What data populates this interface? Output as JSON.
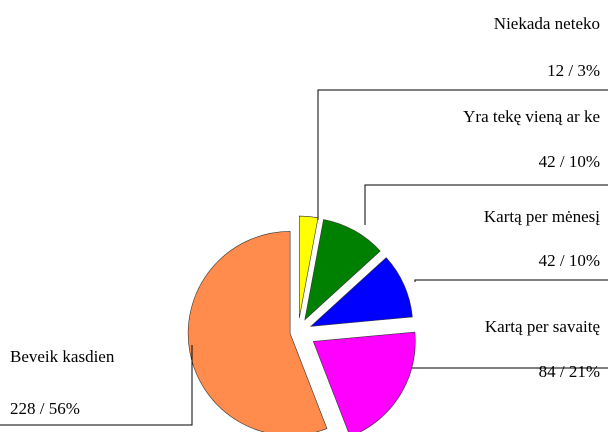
{
  "chart_data": {
    "type": "pie",
    "categories": [
      "Niekada neteko",
      "Yra tekę vieną ar ke",
      "Kartą per mėnesį",
      "Kartą per savaitę",
      "Beveik kasdien"
    ],
    "values": [
      12,
      42,
      42,
      84,
      228
    ],
    "value_labels": [
      "12 / 3%",
      "42 / 10%",
      "42 / 10%",
      "84 / 21%",
      "228 / 56%"
    ],
    "colors": [
      "#ffff00",
      "#008000",
      "#0000ff",
      "#ff00ff",
      "#ff8c4c"
    ]
  }
}
